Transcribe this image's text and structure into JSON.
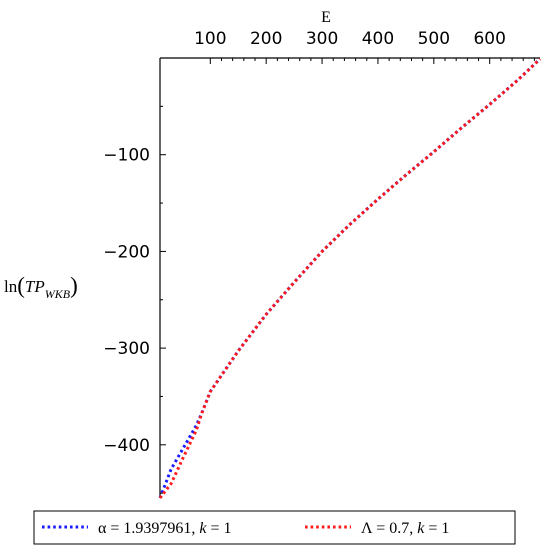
{
  "chart_data": {
    "type": "line",
    "xlabel": "E",
    "ylabel": {
      "prefix": "ln",
      "main": "TP",
      "subscript": "WKB"
    },
    "x_ticks": [
      100,
      200,
      300,
      400,
      500,
      600
    ],
    "y_ticks": [
      -100,
      -200,
      -300,
      -400
    ],
    "x_range": [
      10,
      690
    ],
    "y_range": [
      -455,
      0
    ],
    "grid": false,
    "legend_position": "bottom",
    "series": [
      {
        "name": "α = 1.9397961, k = 1",
        "legend_parts": {
          "a": "α = 1.9397961, ",
          "k": "k",
          "b": " = 1"
        },
        "color": "#1a1aff",
        "style": "dotted",
        "points": [
          [
            10,
            -455
          ],
          [
            30,
            -425
          ],
          [
            50,
            -405
          ],
          [
            75,
            -380
          ],
          [
            85,
            -367
          ],
          [
            100,
            -345
          ],
          [
            150,
            -303
          ],
          [
            200,
            -265
          ],
          [
            250,
            -232
          ],
          [
            300,
            -200
          ],
          [
            350,
            -172
          ],
          [
            400,
            -146
          ],
          [
            450,
            -121
          ],
          [
            500,
            -97
          ],
          [
            550,
            -72
          ],
          [
            600,
            -48
          ],
          [
            650,
            -23
          ],
          [
            690,
            -1
          ]
        ]
      },
      {
        "name": "Λ = 0.7, k = 1",
        "legend_parts": {
          "a": "Λ = 0.7, ",
          "k": "k",
          "b": " = 1"
        },
        "color": "#ff1a1a",
        "style": "dotted",
        "points": [
          [
            10,
            -455
          ],
          [
            30,
            -440
          ],
          [
            50,
            -415
          ],
          [
            75,
            -385
          ],
          [
            85,
            -367
          ],
          [
            100,
            -345
          ],
          [
            150,
            -303
          ],
          [
            200,
            -265
          ],
          [
            250,
            -232
          ],
          [
            300,
            -200
          ],
          [
            350,
            -172
          ],
          [
            400,
            -146
          ],
          [
            450,
            -121
          ],
          [
            500,
            -97
          ],
          [
            550,
            -72
          ],
          [
            600,
            -48
          ],
          [
            650,
            -23
          ],
          [
            690,
            -1
          ]
        ]
      }
    ]
  }
}
